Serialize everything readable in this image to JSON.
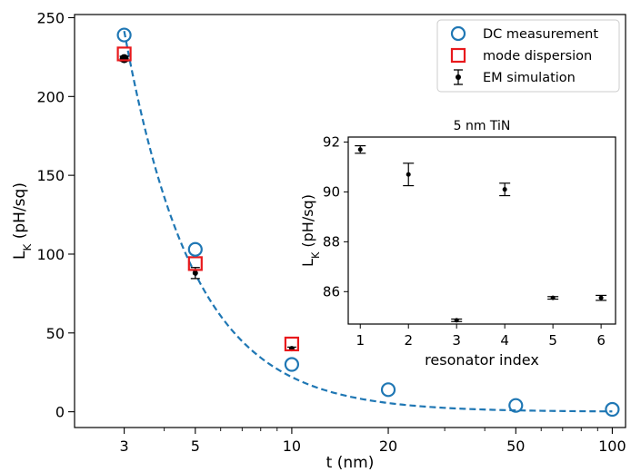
{
  "chart_data": [
    {
      "type": "scatter",
      "xlabel": "t (nm)",
      "ylabel_main": "L",
      "ylabel_sub": "K",
      "ylabel_rest": " (pH/sq)",
      "x_scale": "log",
      "xlim": [
        2.1,
        110
      ],
      "ylim": [
        -10,
        252
      ],
      "x_ticks": [
        3,
        5,
        10,
        20,
        50,
        100
      ],
      "y_ticks": [
        0,
        50,
        100,
        150,
        200,
        250
      ],
      "grid": false,
      "legend_position": "top-right",
      "legend": [
        {
          "label": "DC measurement",
          "marker": "circle-open"
        },
        {
          "label": "mode dispersion",
          "marker": "square-open"
        },
        {
          "label": "EM simulation",
          "marker": "errorbar-dot"
        }
      ],
      "colors": {
        "dc": "#1f77b4",
        "mode": "#e8191c",
        "em": "#000000",
        "fit": "#1f77b4"
      },
      "series": [
        {
          "name": "DC measurement",
          "x": [
            3,
            5,
            10,
            20,
            50,
            100
          ],
          "y": [
            239,
            103,
            30,
            14,
            4,
            1.5
          ]
        },
        {
          "name": "mode dispersion",
          "x": [
            3,
            5,
            10
          ],
          "y": [
            227,
            94,
            43
          ]
        },
        {
          "name": "EM simulation",
          "x": [
            3,
            5,
            10
          ],
          "y": [
            224,
            88,
            40
          ],
          "err": [
            1.5,
            3.5,
            1
          ]
        }
      ],
      "fit_curve": {
        "style": "dashed",
        "form": "a/x^b",
        "a": 2150,
        "b": 1.99
      }
    },
    {
      "type": "scatter",
      "title": "5 nm TiN",
      "xlabel": "resonator index",
      "ylabel_main": "L",
      "ylabel_sub": "K",
      "ylabel_rest": " (pH/sq)",
      "xlim": [
        0.75,
        6.3
      ],
      "ylim": [
        84.7,
        92.2
      ],
      "x_ticks": [
        1,
        2,
        3,
        4,
        5,
        6
      ],
      "y_ticks": [
        86,
        88,
        90,
        92
      ],
      "series": [
        {
          "name": "EM simulation",
          "x": [
            1,
            2,
            3,
            4,
            5,
            6
          ],
          "y": [
            91.7,
            90.7,
            84.85,
            90.1,
            85.75,
            85.75
          ],
          "err": [
            0.15,
            0.45,
            0.05,
            0.25,
            0.05,
            0.1
          ]
        }
      ]
    }
  ]
}
